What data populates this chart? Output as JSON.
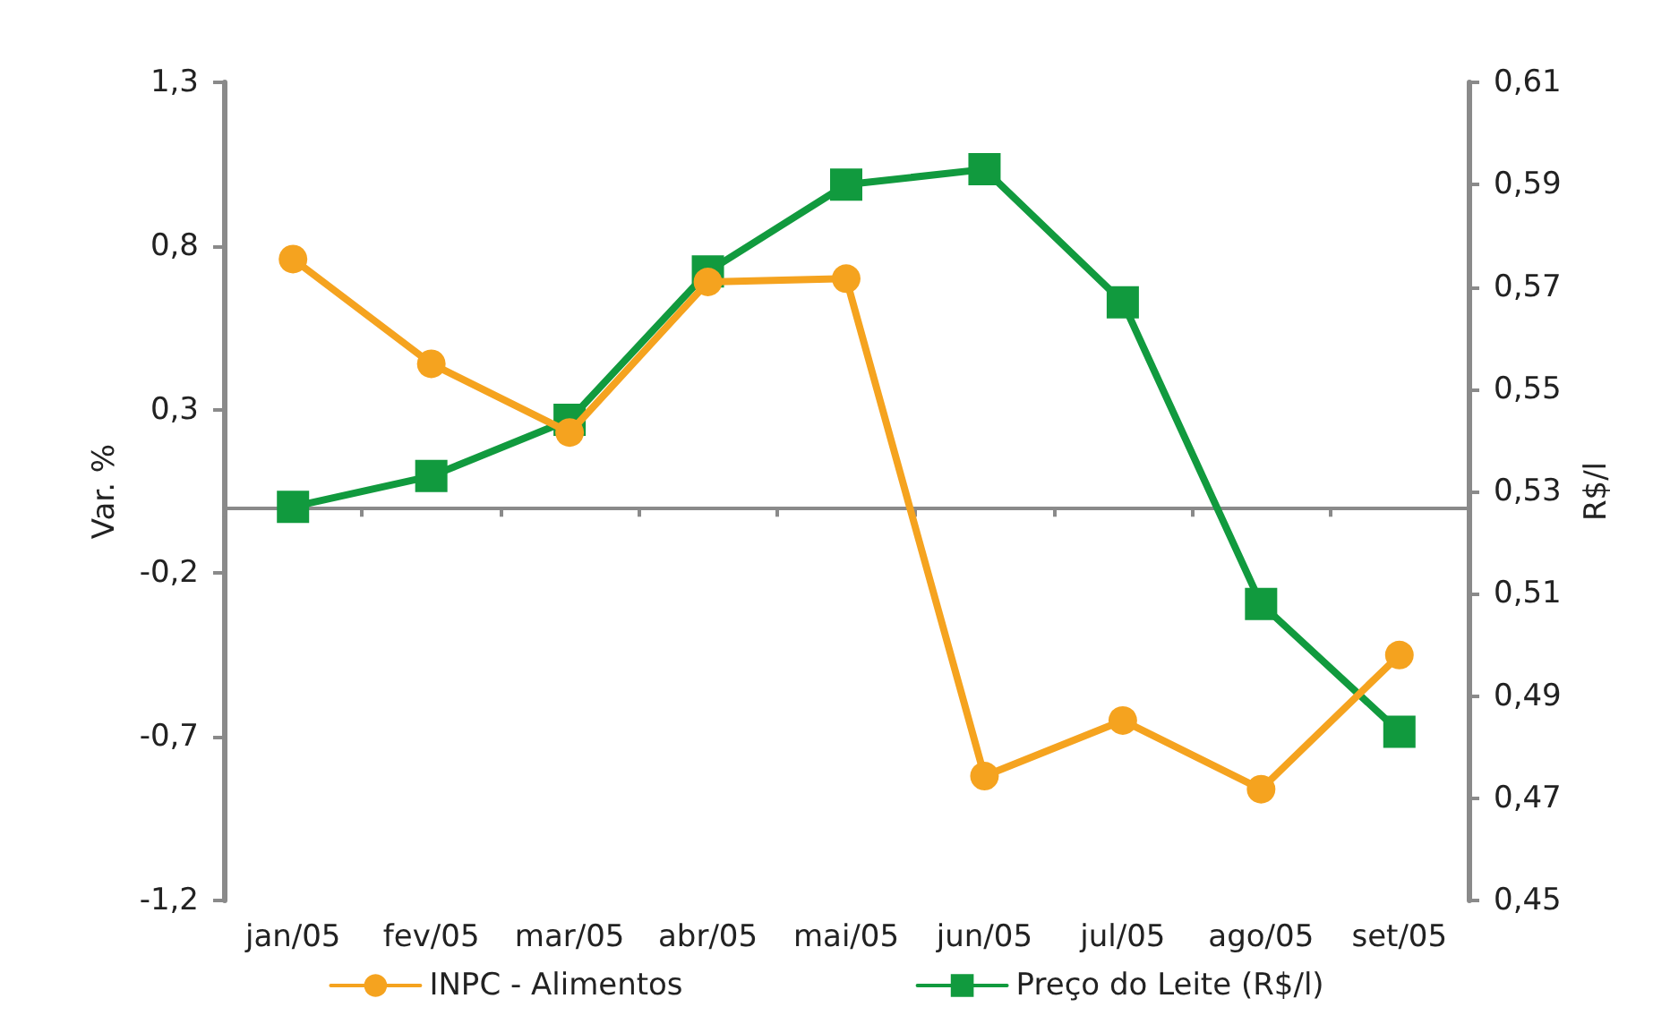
{
  "chart_data": {
    "type": "line",
    "ylabel": "Var. %",
    "y2label": "R$/l",
    "categories": [
      "jan/05",
      "fev/05",
      "mar/05",
      "abr/05",
      "mai/05",
      "jun/05",
      "jul/05",
      "ago/05",
      "set/05"
    ],
    "series": [
      {
        "name": "INPC - Alimentos",
        "color": "#f5a31f",
        "marker": "circle",
        "values": [
          0.76,
          0.44,
          0.23,
          0.69,
          0.7,
          -0.82,
          -0.65,
          -0.86,
          -0.45
        ]
      },
      {
        "name": "Preço do Leite (R$/l)",
        "color": "#119a3e",
        "marker": "square",
        "axis": "y2",
        "values": [
          0.527,
          0.533,
          0.544,
          0.573,
          0.59,
          0.593,
          0.567,
          0.508,
          0.483
        ]
      }
    ],
    "ylim": [
      -1.2,
      1.3
    ],
    "yticks": [
      {
        "value": -1.2,
        "label": "-1,2"
      },
      {
        "value": -0.7,
        "label": "-0,7"
      },
      {
        "value": -0.2,
        "label": "-0,2"
      },
      {
        "value": 0.3,
        "label": "0,3"
      },
      {
        "value": 0.8,
        "label": "0,8"
      },
      {
        "value": 1.3,
        "label": "1,3"
      }
    ],
    "y2lim": [
      0.45,
      0.61
    ],
    "y2ticks": [
      {
        "value": 0.45,
        "label": "0,45"
      },
      {
        "value": 0.47,
        "label": "0,47"
      },
      {
        "value": 0.49,
        "label": "0,49"
      },
      {
        "value": 0.51,
        "label": "0,51"
      },
      {
        "value": 0.53,
        "label": "0,53"
      },
      {
        "value": 0.55,
        "label": "0,55"
      },
      {
        "value": 0.57,
        "label": "0,57"
      },
      {
        "value": 0.59,
        "label": "0,59"
      },
      {
        "value": 0.61,
        "label": "0,61"
      }
    ],
    "grid": false,
    "legend": "bottom",
    "line_style": "solid"
  }
}
